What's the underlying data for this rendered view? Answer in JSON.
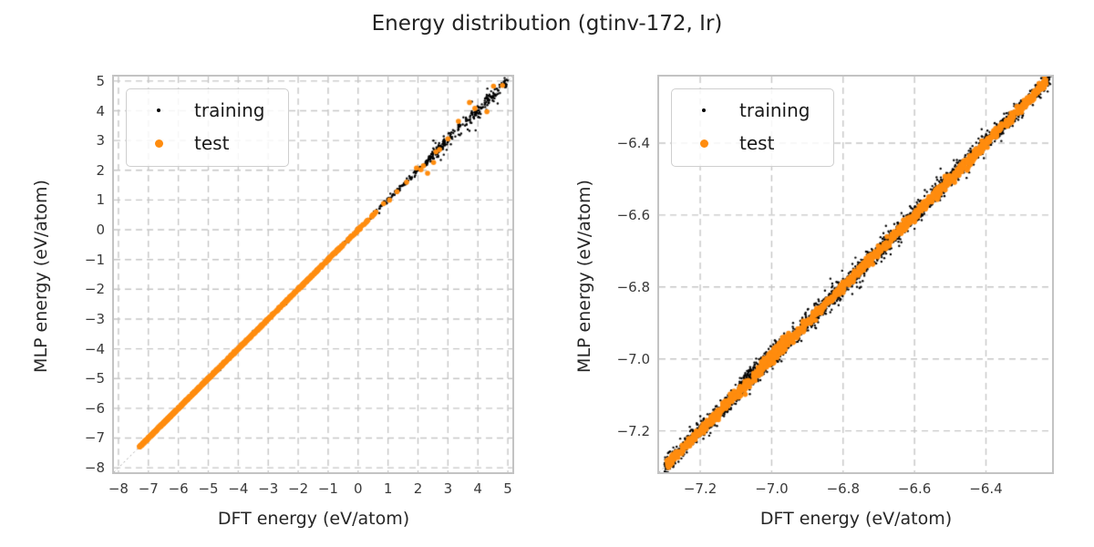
{
  "colors": {
    "training": "#000000",
    "test": "#ff8c0e",
    "grid": "#c6c6c6",
    "spine": "#c3c3c3",
    "diagonal": "#a8a8a8",
    "title_text": "#222222",
    "tick_text": "#3a3a3a",
    "label_text": "#262626"
  },
  "chart_data": {
    "type": "scatter",
    "title": "Energy distribution (gtinv-172, Ir)",
    "plots": [
      {
        "name": "energy-parity-overview",
        "xlabel": "DFT energy (eV/atom)",
        "ylabel": "MLP energy (eV/atom)",
        "xlim": [
          -8.15,
          5.15
        ],
        "ylim": [
          -8.15,
          5.15
        ],
        "xticks": {
          "values": [
            -8,
            -7,
            -6,
            -5,
            -4,
            -3,
            -2,
            -1,
            0,
            1,
            2,
            3,
            4,
            5
          ],
          "labels": [
            "−8",
            "−7",
            "−6",
            "−5",
            "−4",
            "−3",
            "−2",
            "−1",
            "0",
            "1",
            "2",
            "3",
            "4",
            "5"
          ]
        },
        "yticks": {
          "values": [
            5,
            4,
            3,
            2,
            1,
            0,
            -1,
            -2,
            -3,
            -4,
            -5,
            -6,
            -7,
            -8
          ],
          "labels": [
            "5",
            "4",
            "3",
            "2",
            "1",
            "0",
            "−1",
            "−2",
            "−3",
            "−4",
            "−5",
            "−6",
            "−7",
            "−8"
          ]
        },
        "grid": "dashed",
        "reference_line": "y = x",
        "legend": {
          "position": "upper left",
          "entries": [
            "training",
            "test"
          ]
        },
        "series": [
          {
            "name": "training",
            "color_key": "training",
            "marker_px": 2.4,
            "seed": 11,
            "bands": [
              {
                "x": [
                  -7.32,
                  -3.0
                ],
                "n": 750,
                "sigma": 0.03
              },
              {
                "x": [
                  -3.0,
                  0.5
                ],
                "n": 380,
                "sigma": 0.035
              },
              {
                "x": [
                  0.5,
                  2.5
                ],
                "n": 140,
                "sigma": 0.05
              },
              {
                "x": [
                  2.4,
                  5.0
                ],
                "n": 210,
                "sigma": 0.12
              },
              {
                "x": [
                  2.2,
                  4.9
                ],
                "n": 28,
                "sigma": 0.3
              }
            ],
            "points": []
          },
          {
            "name": "test",
            "color_key": "test",
            "marker_px": 5.6,
            "seed": 42,
            "bands": [
              {
                "x": [
                  -7.3,
                  -3.2
                ],
                "n": 900,
                "sigma": 0.012
              },
              {
                "x": [
                  -3.2,
                  -0.45
                ],
                "n": 300,
                "sigma": 0.015
              },
              {
                "x": [
                  -0.45,
                  0.6
                ],
                "n": 45,
                "sigma": 0.02
              }
            ],
            "points": [
              [
                0.85,
                0.88
              ],
              [
                1.05,
                1.0
              ],
              [
                1.3,
                1.28
              ],
              [
                1.62,
                1.6
              ],
              [
                1.95,
                2.08
              ],
              [
                2.1,
                2.02
              ],
              [
                2.18,
                2.15
              ],
              [
                2.32,
                1.9
              ],
              [
                2.52,
                2.26
              ],
              [
                2.6,
                2.62
              ],
              [
                2.72,
                2.7
              ],
              [
                3.0,
                3.06
              ],
              [
                3.35,
                3.65
              ],
              [
                3.72,
                4.28
              ],
              [
                3.9,
                4.08
              ],
              [
                4.3,
                3.97
              ],
              [
                4.52,
                4.83
              ],
              [
                4.82,
                4.85
              ]
            ]
          }
        ]
      },
      {
        "name": "energy-parity-zoom",
        "xlabel": "DFT energy (eV/atom)",
        "ylabel": "MLP energy (eV/atom)",
        "xlim": [
          -7.315,
          -6.215
        ],
        "ylim": [
          -7.315,
          -6.215
        ],
        "xticks": {
          "values": [
            -7.2,
            -7.0,
            -6.8,
            -6.6,
            -6.4
          ],
          "labels": [
            "−7.2",
            "−7.0",
            "−6.8",
            "−6.6",
            "−6.4"
          ]
        },
        "yticks": {
          "values": [
            -6.4,
            -6.6,
            -6.8,
            -7.0,
            -7.2
          ],
          "labels": [
            "−6.4",
            "−6.6",
            "−6.8",
            "−7.0",
            "−7.2"
          ]
        },
        "grid": "dashed",
        "reference_line": "y = x",
        "legend": {
          "position": "upper left",
          "entries": [
            "training",
            "test"
          ]
        },
        "series": [
          {
            "name": "training",
            "color_key": "training",
            "marker_px": 2.4,
            "seed": 7,
            "bands": [
              {
                "x": [
                  -7.3,
                  -6.22
                ],
                "n": 2700,
                "sigma": 0.012
              },
              {
                "x": [
                  -7.09,
                  -6.96
                ],
                "n": 160,
                "sigma": 0.009,
                "bias": 0.022
              },
              {
                "x": [
                  -6.92,
                  -6.35
                ],
                "n": 180,
                "sigma": 0.025
              }
            ],
            "points": [
              [
                -6.75,
                -6.8
              ],
              [
                -6.68,
                -6.63
              ],
              [
                -6.94,
                -6.9
              ]
            ]
          },
          {
            "name": "test",
            "color_key": "test",
            "marker_px": 5.6,
            "seed": 99,
            "bands": [
              {
                "x": [
                  -7.295,
                  -6.23
                ],
                "n": 1150,
                "sigma": 0.007
              },
              {
                "x": [
                  -7.03,
                  -6.95
                ],
                "n": 50,
                "sigma": 0.006,
                "bias": 0.015
              }
            ],
            "points": []
          }
        ]
      }
    ]
  }
}
